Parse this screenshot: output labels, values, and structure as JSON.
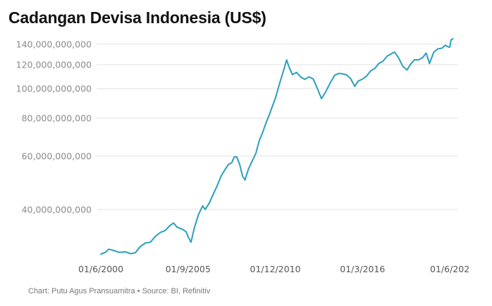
{
  "title": "Cadangan Devisa Indonesia (US$)",
  "footer": "Chart: Putu Agus Pransuamitra • Source: BI, Refinitiv",
  "colors": {
    "line": "#2a9fbc",
    "grid": "#e2e2e2",
    "tick_y": "#8a8a8a",
    "tick_x": "#555555"
  },
  "chart_data": {
    "type": "line",
    "title": "Cadangan Devisa Indonesia (US$)",
    "xlabel": "",
    "ylabel": "",
    "yscale": "log",
    "grid": "horizontal",
    "xlim": [
      2000.42,
      2021.5
    ],
    "ylim": [
      27500000000,
      150000000000
    ],
    "ytick_values": [
      40000000000,
      60000000000,
      80000000000,
      100000000000,
      120000000000,
      140000000000
    ],
    "ytick_labels": [
      "40,000,000,000",
      "60,000,000,000",
      "80,000,000,000",
      "100,000,000,000",
      "120,000,000,000",
      "140,000,000,000"
    ],
    "xtick_values": [
      2000.42,
      2005.67,
      2010.92,
      2016.17,
      2021.42
    ],
    "xtick_labels": [
      "01/6/2000",
      "01/9/2005",
      "01/12/2010",
      "01/3/2016",
      "01/6/202"
    ],
    "series": [
      {
        "points": [
          [
            2000.42,
            28.5
          ],
          [
            2000.7,
            28.9
          ],
          [
            2000.9,
            29.6
          ],
          [
            2001.2,
            29.3
          ],
          [
            2001.5,
            28.9
          ],
          [
            2001.9,
            29.0
          ],
          [
            2002.2,
            28.6
          ],
          [
            2002.5,
            28.8
          ],
          [
            2002.8,
            30.2
          ],
          [
            2003.1,
            31.0
          ],
          [
            2003.4,
            31.2
          ],
          [
            2003.7,
            32.6
          ],
          [
            2004.0,
            33.6
          ],
          [
            2004.3,
            34.1
          ],
          [
            2004.55,
            35.3
          ],
          [
            2004.8,
            36.1
          ],
          [
            2005.0,
            35.0
          ],
          [
            2005.3,
            34.5
          ],
          [
            2005.55,
            33.8
          ],
          [
            2005.7,
            32.3
          ],
          [
            2005.85,
            31.2
          ],
          [
            2006.05,
            34.8
          ],
          [
            2006.3,
            38.5
          ],
          [
            2006.55,
            41.1
          ],
          [
            2006.7,
            40.0
          ],
          [
            2006.95,
            42.0
          ],
          [
            2007.15,
            44.5
          ],
          [
            2007.4,
            47.6
          ],
          [
            2007.65,
            51.4
          ],
          [
            2007.9,
            54.2
          ],
          [
            2008.1,
            56.3
          ],
          [
            2008.3,
            57.0
          ],
          [
            2008.45,
            59.5
          ],
          [
            2008.6,
            59.6
          ],
          [
            2008.78,
            56.2
          ],
          [
            2008.95,
            51.5
          ],
          [
            2009.1,
            50.0
          ],
          [
            2009.3,
            54.3
          ],
          [
            2009.5,
            57.3
          ],
          [
            2009.75,
            61.2
          ],
          [
            2009.95,
            67.3
          ],
          [
            2010.15,
            71.5
          ],
          [
            2010.35,
            76.8
          ],
          [
            2010.55,
            81.8
          ],
          [
            2010.75,
            87.5
          ],
          [
            2010.92,
            92.9
          ],
          [
            2011.2,
            105.0
          ],
          [
            2011.45,
            116.5
          ],
          [
            2011.6,
            124.4
          ],
          [
            2011.75,
            117.8
          ],
          [
            2011.95,
            111.2
          ],
          [
            2012.2,
            113.1
          ],
          [
            2012.45,
            109.2
          ],
          [
            2012.7,
            107.3
          ],
          [
            2012.95,
            109.4
          ],
          [
            2013.2,
            107.6
          ],
          [
            2013.45,
            100.2
          ],
          [
            2013.7,
            92.7
          ],
          [
            2013.95,
            97.6
          ],
          [
            2014.25,
            105.1
          ],
          [
            2014.5,
            110.8
          ],
          [
            2014.75,
            112.2
          ],
          [
            2014.95,
            111.9
          ],
          [
            2015.2,
            111.0
          ],
          [
            2015.45,
            108.0
          ],
          [
            2015.7,
            101.7
          ],
          [
            2015.9,
            105.9
          ],
          [
            2016.17,
            107.5
          ],
          [
            2016.4,
            109.8
          ],
          [
            2016.65,
            114.4
          ],
          [
            2016.9,
            116.4
          ],
          [
            2017.15,
            121.0
          ],
          [
            2017.4,
            123.1
          ],
          [
            2017.65,
            127.9
          ],
          [
            2017.9,
            130.2
          ],
          [
            2018.1,
            131.98
          ],
          [
            2018.35,
            126.0
          ],
          [
            2018.6,
            118.3
          ],
          [
            2018.85,
            115.2
          ],
          [
            2019.05,
            120.1
          ],
          [
            2019.3,
            124.5
          ],
          [
            2019.55,
            124.3
          ],
          [
            2019.8,
            126.7
          ],
          [
            2020.0,
            131.0
          ],
          [
            2020.2,
            121.0
          ],
          [
            2020.45,
            131.7
          ],
          [
            2020.7,
            135.2
          ],
          [
            2020.95,
            135.9
          ],
          [
            2021.15,
            138.8
          ],
          [
            2021.35,
            137.1
          ],
          [
            2021.42,
            137.1
          ],
          [
            2021.5,
            144.8
          ],
          [
            2021.6,
            146.0
          ]
        ]
      }
    ]
  }
}
